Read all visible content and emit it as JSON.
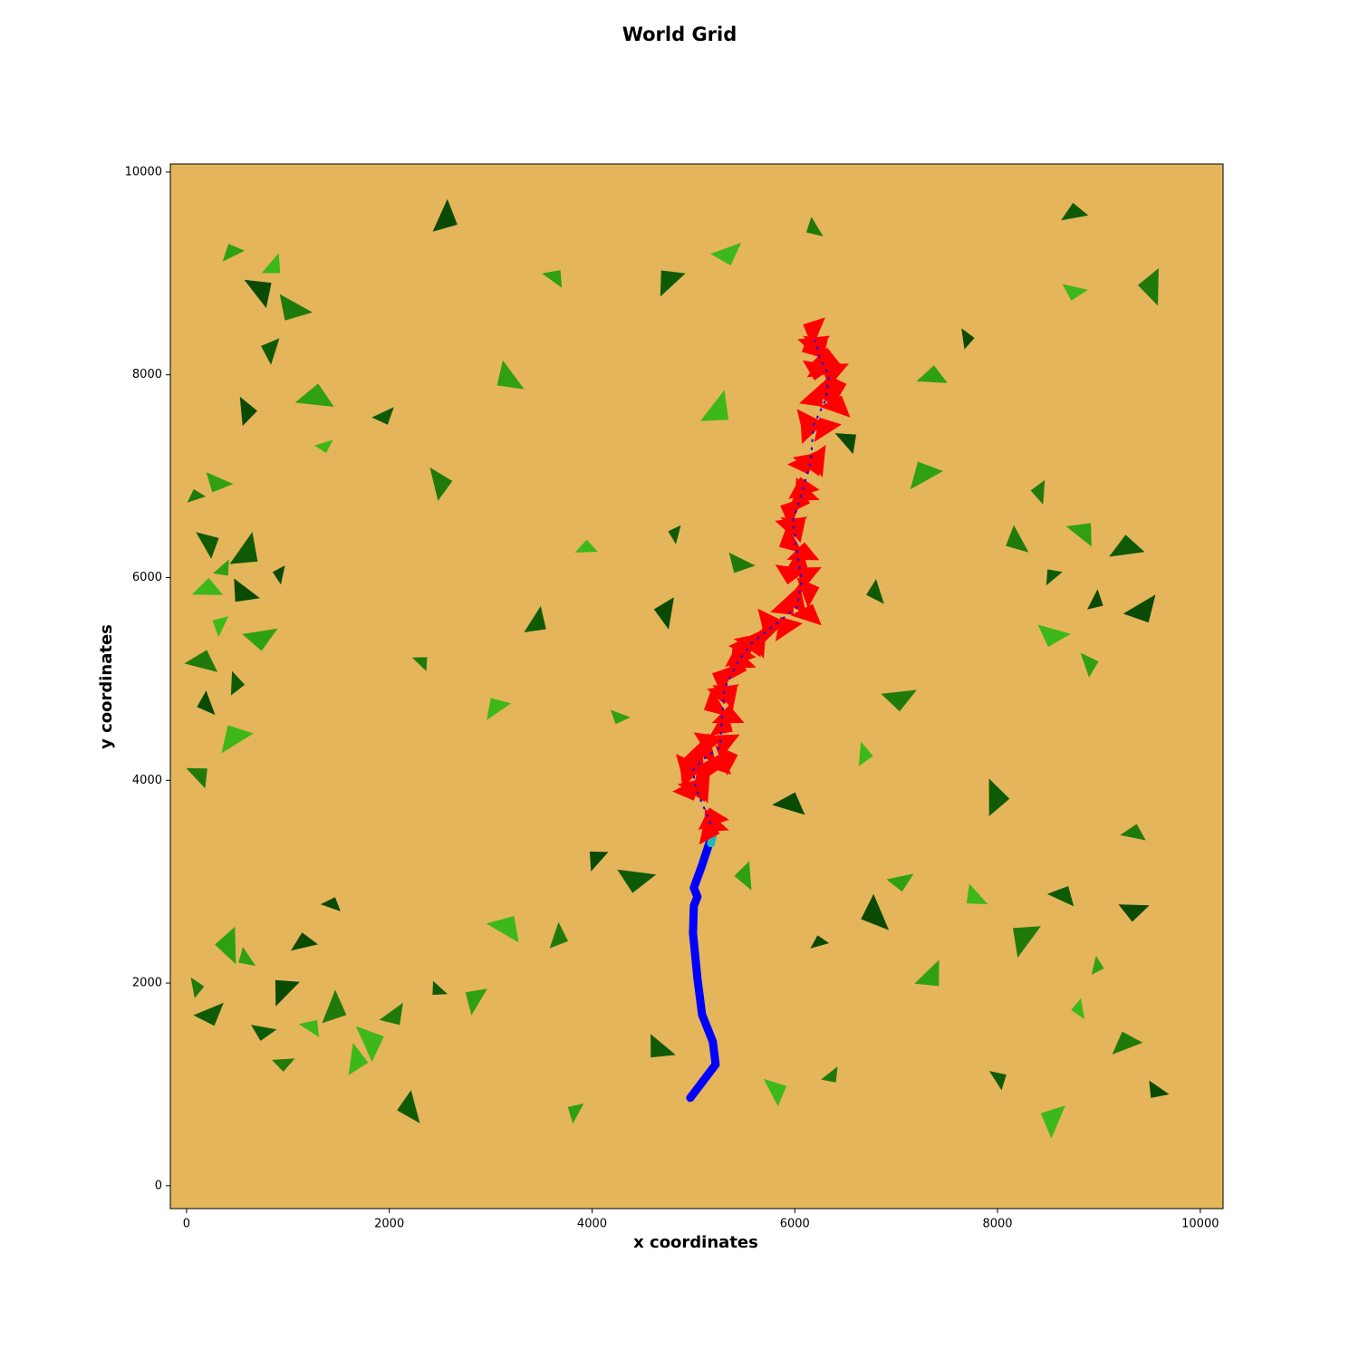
{
  "chart_data": {
    "type": "line",
    "title": "World Grid",
    "xlabel": "x coordinates",
    "ylabel": "y coordinates",
    "xlim": [
      -160,
      10225
    ],
    "ylim": [
      -225,
      10080
    ],
    "xticks": [
      0,
      2000,
      4000,
      6000,
      8000,
      10000
    ],
    "yticks": [
      0,
      2000,
      4000,
      6000,
      8000,
      10000
    ],
    "background": "#e4b55a",
    "series": [
      {
        "style": "scatter",
        "colors": [
          "#1f7a0a",
          "#0f5a05",
          "#2ea012",
          "#0a4a02",
          "#3cb81a"
        ],
        "x": [
          50,
          200,
          400,
          600,
          300,
          100,
          500,
          800,
          200,
          400,
          100,
          650,
          350,
          900,
          150,
          100,
          300,
          600,
          900,
          1200,
          1500,
          800,
          400,
          1100,
          1800,
          2100,
          2500,
          2800,
          1400,
          1700,
          1000,
          2200,
          400,
          700,
          900,
          1100,
          800,
          1200,
          600,
          1400,
          8200,
          8500,
          8800,
          9000,
          8600,
          8400,
          9200,
          8900,
          9500,
          7800,
          8200,
          8600,
          9000,
          9400,
          8800,
          9200,
          8000,
          7400,
          9600,
          8500,
          9300,
          8000,
          7100,
          6800,
          3000,
          2300,
          3500,
          4300,
          4700,
          3900,
          2500,
          2000,
          3200,
          4000,
          3100,
          3700,
          4500,
          5500,
          6200,
          5800,
          6400,
          4700,
          3800,
          5900,
          6700,
          7100,
          6800,
          7200,
          6500,
          5300,
          5500,
          4800,
          7300,
          7700,
          5400,
          6200,
          4700,
          3600,
          2600,
          8800,
          9500,
          8700
        ],
        "y": [
          6800,
          6400,
          6100,
          5800,
          5500,
          5200,
          5000,
          5400,
          4700,
          4400,
          4100,
          6300,
          6900,
          6000,
          5900,
          2000,
          1700,
          2200,
          1900,
          1600,
          1800,
          1500,
          2300,
          2400,
          1500,
          1700,
          1900,
          1800,
          2800,
          1300,
          1200,
          700,
          9200,
          8900,
          9100,
          8600,
          8200,
          7800,
          7700,
          7300,
          6300,
          6000,
          6500,
          5800,
          5400,
          6800,
          6300,
          5200,
          5700,
          2800,
          2400,
          2900,
          2200,
          2700,
          1700,
          1400,
          1100,
          2100,
          900,
          600,
          3500,
          3900,
          3000,
          2600,
          4700,
          5200,
          5600,
          4600,
          5600,
          6300,
          7000,
          7600,
          7900,
          3200,
          2600,
          2500,
          3000,
          3000,
          2400,
          1000,
          1100,
          1300,
          700,
          3800,
          4300,
          4800,
          5800,
          7000,
          7400,
          7700,
          6100,
          6400,
          8000,
          8400,
          9200,
          9400,
          8900,
          9000,
          9600,
          8800,
          8800,
          9600
        ]
      },
      {
        "style": "path",
        "color": "#0000ff",
        "x": [
          4969,
          5219,
          5192,
          5085,
          5040,
          4996,
          5004,
          5040,
          5004,
          5085,
          5174
        ],
        "y": [
          867,
          1197,
          1421,
          1689,
          2046,
          2493,
          2761,
          2851,
          2940,
          3163,
          3432
        ]
      },
      {
        "style": "path",
        "color": "#20b8b8",
        "x": [
          5174,
          5210
        ],
        "y": [
          3380,
          3566
        ]
      },
      {
        "style": "triangles",
        "color": "#ff0000",
        "line_color": "#0000ff",
        "x": [
          5174,
          5022,
          4996,
          5130,
          5264,
          5282,
          5308,
          5442,
          5576,
          5800,
          6023,
          6068,
          6023,
          5979,
          6068,
          6157,
          6184,
          6309,
          6336,
          6246,
          6201
        ],
        "y": [
          3566,
          3923,
          4102,
          4236,
          4325,
          4638,
          4906,
          5174,
          5353,
          5532,
          5710,
          5978,
          6247,
          6560,
          6828,
          7141,
          7498,
          7766,
          7989,
          8168,
          8347
        ]
      }
    ]
  }
}
